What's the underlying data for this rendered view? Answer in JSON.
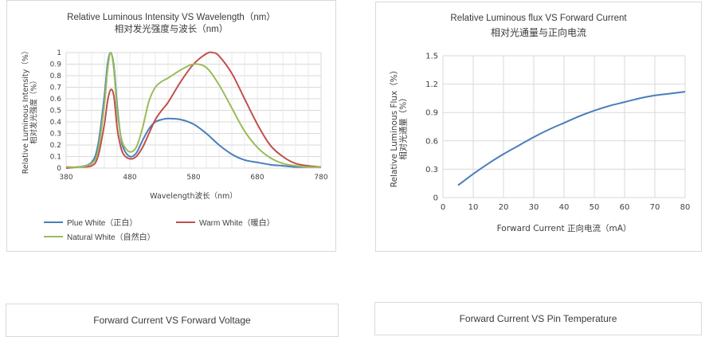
{
  "chart_data": [
    {
      "type": "line",
      "title": "Relative Luminous Intensity VS Wavelength（nm）",
      "subtitle": "相对发光强度与波长（nm）",
      "xlabel": "Wavelength波长（nm）",
      "ylabel": "Relative Luminous Intensity（%）",
      "ylabel2": "相对发光强度（%）",
      "xlim": [
        380,
        780
      ],
      "ylim": [
        0,
        1
      ],
      "xticks": [
        "380",
        "480",
        "580",
        "680",
        "780"
      ],
      "yticks": [
        "0",
        "0.1",
        "0.2",
        "0.3",
        "0.4",
        "0.5",
        "0.6",
        "0.7",
        "0.8",
        "0.9",
        "1"
      ],
      "grid": true,
      "legend_position": "bottom",
      "series": [
        {
          "name": "Plue White（正白）",
          "color": "#4a7ebb",
          "x": [
            380,
            400,
            420,
            430,
            440,
            445,
            450,
            455,
            460,
            465,
            470,
            480,
            490,
            500,
            510,
            520,
            530,
            540,
            560,
            580,
            600,
            620,
            640,
            660,
            680,
            700,
            720,
            740,
            760,
            780
          ],
          "y": [
            0.01,
            0.01,
            0.05,
            0.2,
            0.62,
            0.9,
            1.0,
            0.88,
            0.55,
            0.3,
            0.17,
            0.1,
            0.13,
            0.24,
            0.34,
            0.4,
            0.42,
            0.43,
            0.42,
            0.38,
            0.3,
            0.2,
            0.12,
            0.07,
            0.05,
            0.03,
            0.02,
            0.01,
            0.01,
            0.01
          ]
        },
        {
          "name": "Warm White（暖白）",
          "color": "#c0504d",
          "x": [
            380,
            400,
            420,
            430,
            440,
            445,
            450,
            455,
            460,
            465,
            470,
            480,
            490,
            500,
            510,
            520,
            530,
            540,
            560,
            580,
            600,
            610,
            620,
            640,
            660,
            680,
            700,
            720,
            740,
            760,
            780
          ],
          "y": [
            0.0,
            0.01,
            0.02,
            0.1,
            0.38,
            0.58,
            0.68,
            0.62,
            0.35,
            0.2,
            0.12,
            0.08,
            0.1,
            0.18,
            0.3,
            0.42,
            0.5,
            0.57,
            0.75,
            0.9,
            0.99,
            1.0,
            0.97,
            0.82,
            0.6,
            0.38,
            0.2,
            0.1,
            0.04,
            0.02,
            0.01
          ]
        },
        {
          "name": "Natural White（自然白）",
          "color": "#9bbb59",
          "x": [
            380,
            400,
            420,
            430,
            440,
            445,
            450,
            455,
            460,
            465,
            470,
            480,
            490,
            500,
            510,
            520,
            530,
            540,
            560,
            580,
            600,
            620,
            640,
            660,
            680,
            700,
            720,
            740,
            760,
            780
          ],
          "y": [
            0.01,
            0.01,
            0.04,
            0.15,
            0.55,
            0.85,
            1.0,
            0.85,
            0.5,
            0.3,
            0.2,
            0.14,
            0.18,
            0.35,
            0.58,
            0.7,
            0.75,
            0.78,
            0.85,
            0.9,
            0.87,
            0.72,
            0.52,
            0.32,
            0.18,
            0.09,
            0.04,
            0.02,
            0.01,
            0.01
          ]
        }
      ]
    },
    {
      "type": "line",
      "title": "Relative Luminous flux VS Forward Current",
      "subtitle": "相对光通量与正向电流",
      "xlabel": "Forward Current 正向电流（mA）",
      "ylabel": "Relative Luminous Flux（%）",
      "ylabel2": "相对光通量（%）",
      "xlim": [
        0,
        80
      ],
      "ylim": [
        0,
        1.5
      ],
      "xticks": [
        "0",
        "10",
        "20",
        "30",
        "40",
        "50",
        "60",
        "70",
        "80"
      ],
      "yticks": [
        "0",
        "0.3",
        "0.6",
        "0.9",
        "1.2",
        "1.5"
      ],
      "grid": true,
      "series": [
        {
          "color": "#4a7ebb",
          "x": [
            5,
            10,
            15,
            20,
            25,
            30,
            35,
            40,
            45,
            50,
            55,
            60,
            65,
            70,
            75,
            80
          ],
          "y": [
            0.13,
            0.25,
            0.36,
            0.46,
            0.55,
            0.64,
            0.72,
            0.79,
            0.86,
            0.92,
            0.97,
            1.01,
            1.05,
            1.08,
            1.1,
            1.12
          ]
        }
      ]
    },
    {
      "type": "line",
      "title": "Forward Current VS Forward Voltage"
    },
    {
      "type": "line",
      "title": "Forward Current VS Pin Temperature"
    }
  ]
}
